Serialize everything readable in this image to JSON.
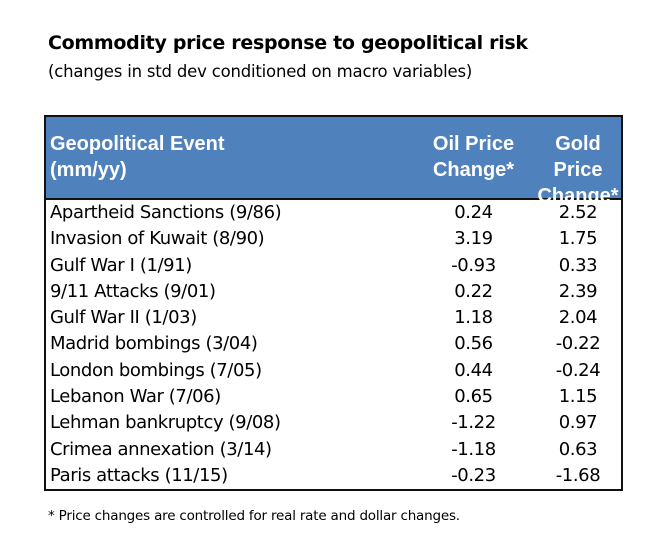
{
  "chart_data": {
    "type": "table",
    "title": "Commodity price response to geopolitical risk",
    "subtitle": "(changes in std dev conditioned on macro variables)",
    "columns": [
      {
        "line1": "Geopolitical Event",
        "line2": "(mm/yy)"
      },
      {
        "line1": "Oil Price",
        "line2": "Change*"
      },
      {
        "line1": "Gold Price",
        "line2": "Change*"
      }
    ],
    "rows": [
      [
        "Apartheid Sanctions (9/86)",
        "0.24",
        "2.52"
      ],
      [
        "Invasion of Kuwait (8/90)",
        "3.19",
        "1.75"
      ],
      [
        "Gulf War I (1/91)",
        "-0.93",
        "0.33"
      ],
      [
        "9/11 Attacks (9/01)",
        "0.22",
        "2.39"
      ],
      [
        "Gulf War II (1/03)",
        "1.18",
        "2.04"
      ],
      [
        "Madrid bombings (3/04)",
        "0.56",
        "-0.22"
      ],
      [
        "London bombings (7/05)",
        "0.44",
        "-0.24"
      ],
      [
        "Lebanon War (7/06)",
        "0.65",
        "1.15"
      ],
      [
        "Lehman bankruptcy (9/08)",
        "-1.22",
        "0.97"
      ],
      [
        "Crimea annexation (3/14)",
        "-1.18",
        "0.63"
      ],
      [
        "Paris attacks (11/15)",
        "-0.23",
        "-1.68"
      ]
    ],
    "footnote": "* Price changes are controlled for real rate and dollar changes.",
    "colors": {
      "header_bg": "#4f81bd",
      "header_text": "#ffffff"
    }
  }
}
